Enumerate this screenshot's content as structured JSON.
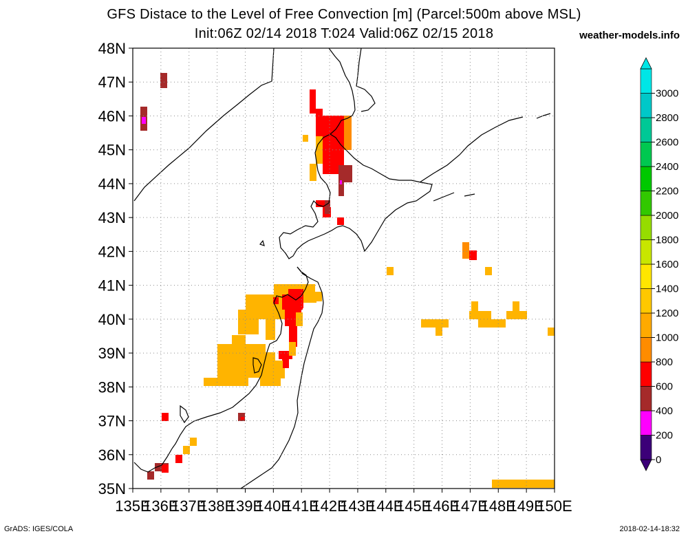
{
  "header": {
    "title": "GFS Distace to the Level of Free Convection [m] (Parcel:500m above MSL)",
    "subtitle": "Init:06Z 02/14 2018 T:024 Valid:06Z 02/15 2018",
    "brand": "weather-models.info"
  },
  "footer": {
    "left": "GrADS: IGES/COLA",
    "right": "2018-02-14-18:32"
  },
  "map": {
    "lat_labels": [
      "48N",
      "47N",
      "46N",
      "45N",
      "44N",
      "43N",
      "42N",
      "41N",
      "40N",
      "39N",
      "38N",
      "37N",
      "36N",
      "35N"
    ],
    "lon_labels": [
      "135E",
      "136E",
      "137E",
      "138E",
      "139E",
      "140E",
      "141E",
      "142E",
      "143E",
      "144E",
      "145E",
      "146E",
      "147E",
      "148E",
      "149E",
      "150E"
    ],
    "lat_range": [
      35,
      48
    ],
    "lon_range": [
      135,
      150
    ],
    "grid": "dotted"
  },
  "colorbar": {
    "labels": [
      "0",
      "200",
      "400",
      "600",
      "800",
      "1000",
      "1200",
      "1400",
      "1600",
      "1800",
      "2000",
      "2200",
      "2400",
      "2600",
      "2800",
      "3000"
    ],
    "colors": [
      "#3c0078",
      "#ff00ff",
      "#a52a2a",
      "#ff0000",
      "#ff8c00",
      "#ffaa00",
      "#ffc800",
      "#ffe600",
      "#c8e600",
      "#96dc00",
      "#32c800",
      "#00c800",
      "#00c850",
      "#00c896",
      "#00c8c8",
      "#00e6e6"
    ],
    "overflow_low": "#3c0078",
    "overflow_high": "#00e6e6"
  },
  "palette": {
    "orange": "#ffb400",
    "dark_orange": "#ff8c00",
    "red": "#ff0000",
    "brown": "#a52a2a",
    "magenta": "#ff00ff"
  }
}
